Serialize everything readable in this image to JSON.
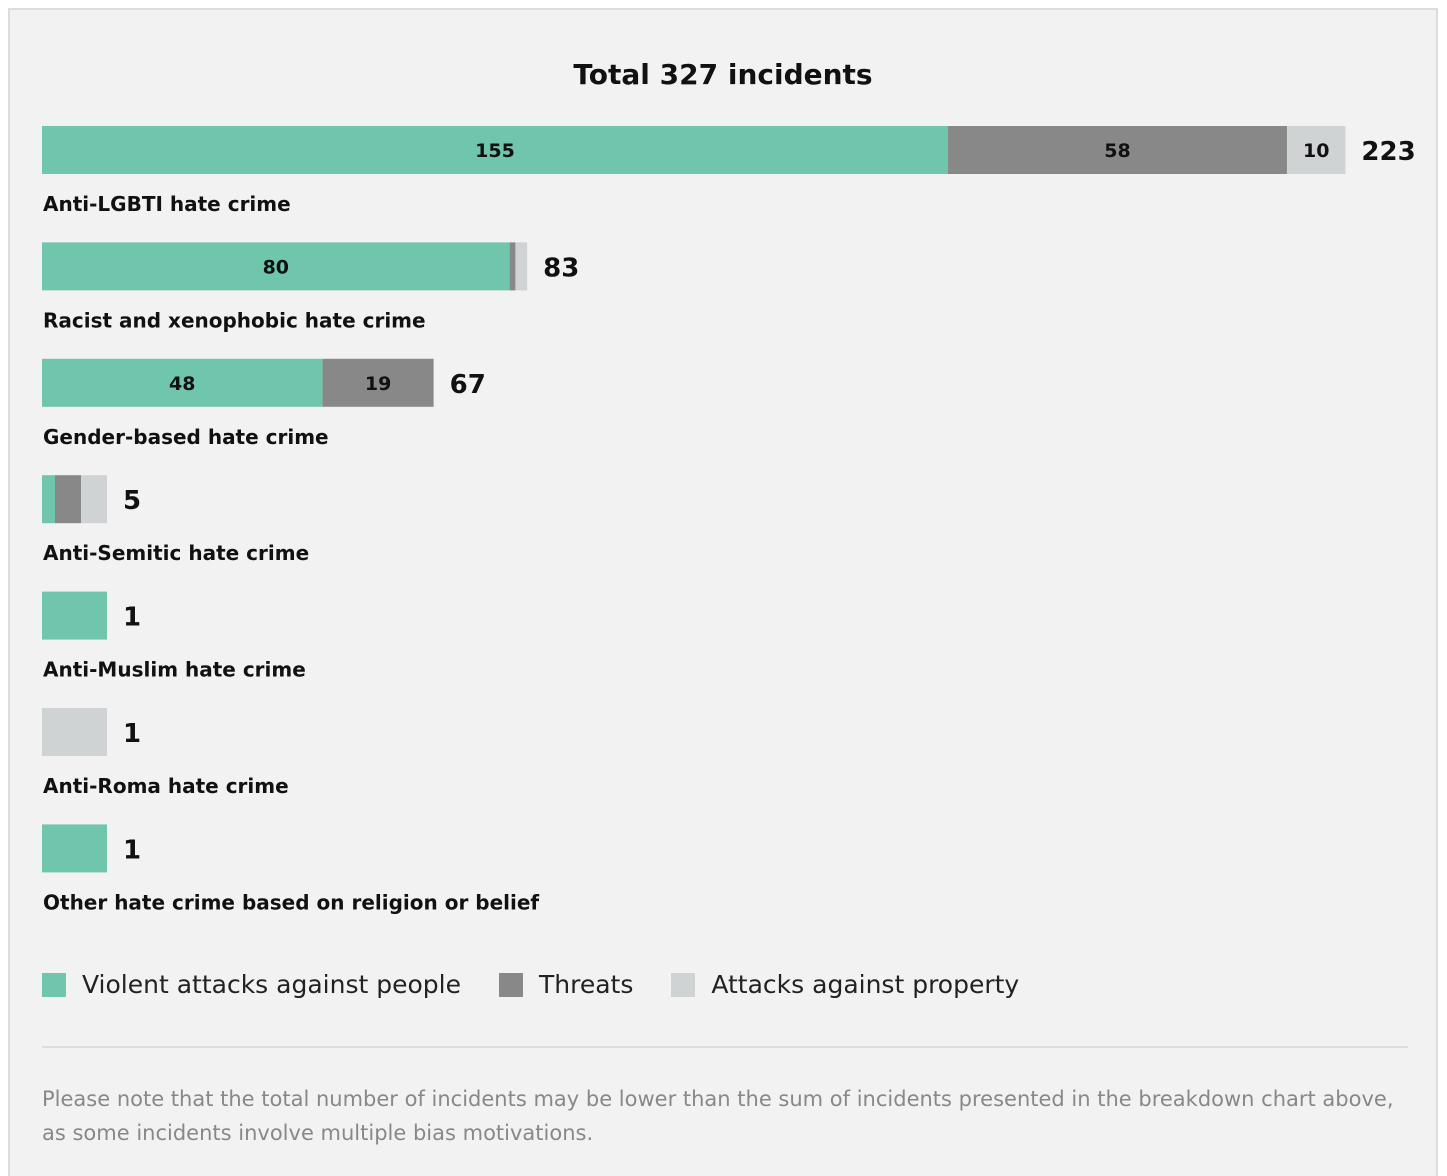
{
  "note": "Please note that the total number of incidents may be lower than the sum of incidents presented in the breakdown chart above, as some incidents involve multiple bias motivations.",
  "colors": {
    "violent": "#70c5ad",
    "threats": "#888888",
    "property": "#cfd3d3"
  },
  "chart_data": {
    "type": "bar",
    "orientation": "horizontal",
    "stacked": true,
    "title": "Total 327 incidents",
    "categories": [
      "Anti-LGBTI hate crime",
      "Racist and xenophobic hate crime",
      "Gender-based hate crime",
      "Anti-Semitic hate crime",
      "Anti-Muslim hate crime",
      "Anti-Roma hate crime",
      "Other hate crime based on religion or belief"
    ],
    "series": [
      {
        "name": "Violent attacks against people",
        "values": [
          155,
          80,
          48,
          1,
          1,
          0,
          1
        ]
      },
      {
        "name": "Threats",
        "values": [
          58,
          1,
          19,
          2,
          0,
          0,
          0
        ]
      },
      {
        "name": "Attacks against property",
        "values": [
          10,
          2,
          0,
          2,
          0,
          1,
          0
        ]
      }
    ],
    "totals": [
      223,
      83,
      67,
      5,
      1,
      1,
      1
    ],
    "data_labels": [
      [
        "155",
        "58",
        "10"
      ],
      [
        "80",
        "",
        ""
      ],
      [
        "48",
        "19",
        ""
      ],
      [
        "",
        "",
        ""
      ],
      [
        "",
        "",
        ""
      ],
      [
        "",
        "",
        ""
      ],
      [
        "",
        "",
        ""
      ]
    ],
    "legend_position": "bottom-left",
    "grid": false
  }
}
